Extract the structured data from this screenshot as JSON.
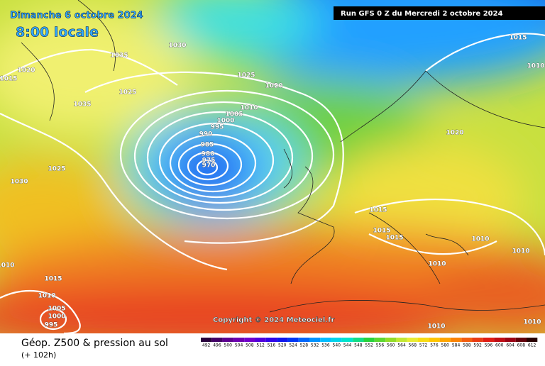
{
  "header": {
    "date": "Dimanche 6 octobre 2024",
    "time": "8:00 locale",
    "run": "Run GFS 0 Z du Mercredi 2 octobre 2024"
  },
  "copyright": "Copyright © 2024 Meteociel.fr",
  "footer": {
    "title": "Géop. Z500 & pression au sol",
    "lead": "(+ 102h)"
  },
  "scale": {
    "values": [
      492,
      496,
      500,
      504,
      508,
      512,
      516,
      520,
      524,
      528,
      532,
      536,
      540,
      544,
      548,
      552,
      556,
      560,
      564,
      568,
      572,
      576,
      580,
      584,
      588,
      592,
      596,
      600,
      604,
      608,
      612
    ]
  },
  "isobars": [
    "1035",
    "1030",
    "1020",
    "1015",
    "1035",
    "1025",
    "1025",
    "1020",
    "1010",
    "1005",
    "1000",
    "995",
    "990",
    "985",
    "980",
    "975",
    "970",
    "1025",
    "1030",
    "1020",
    "1015",
    "1015",
    "1015",
    "1010",
    "1010",
    "1010",
    "1010",
    "1015",
    "1010",
    "1005",
    "1000",
    "995",
    "1010",
    "1010",
    "1015",
    "1010"
  ]
}
